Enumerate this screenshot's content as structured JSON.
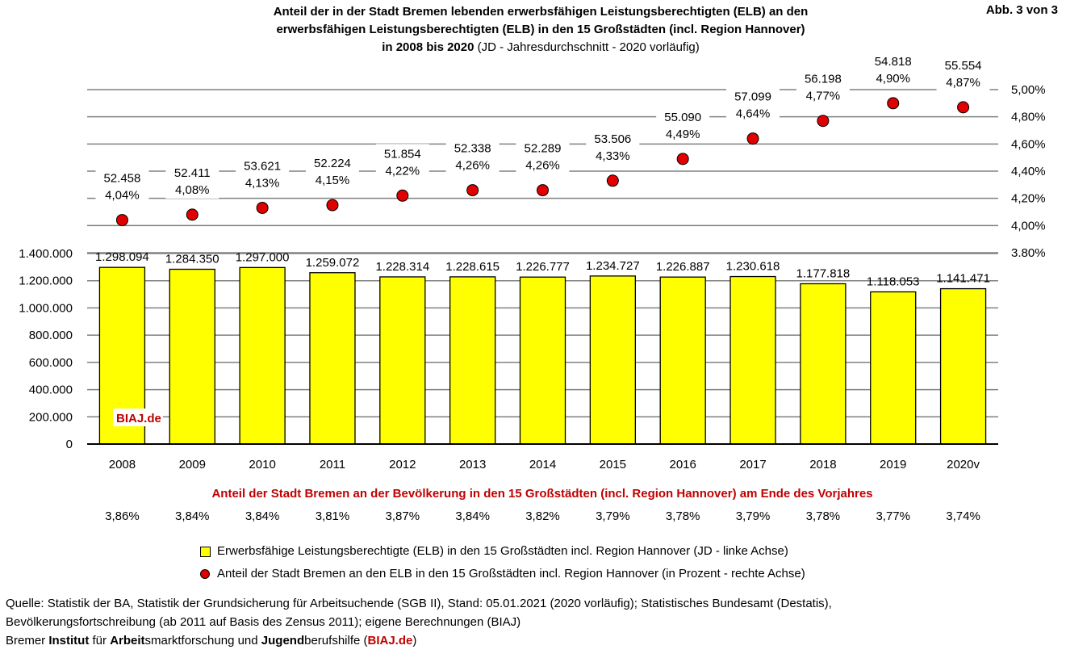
{
  "header": {
    "title_line1": "Anteil der in der Stadt Bremen lebenden erwerbsfähigen Leistungsberechtigten (ELB) an den",
    "title_line2": "erwerbsfähigen Leistungsberechtigten (ELB) in den 15 Großstädten (incl. Region Hannover)",
    "title_line3_bold": "in 2008 bis 2020",
    "title_line3_normal": "(JD - Jahresdurchschnitt - 2020 vorläufig)",
    "figure_label": "Abb. 3 von 3"
  },
  "chart_data": {
    "type": "bar+scatter",
    "categories": [
      "2008",
      "2009",
      "2010",
      "2011",
      "2012",
      "2013",
      "2014",
      "2015",
      "2016",
      "2017",
      "2018",
      "2019",
      "2020v"
    ],
    "bars": {
      "name": "Erwerbsfähige Leistungsberechtigte (ELB) in den 15 Großstädten incl. Region Hannover (JD - linke Achse)",
      "values": [
        1298094,
        1284350,
        1297000,
        1259072,
        1228314,
        1228615,
        1226777,
        1234727,
        1226887,
        1230618,
        1177818,
        1118053,
        1141471
      ],
      "labels": [
        "1.298.094",
        "1.284.350",
        "1.297.000",
        "1.259.072",
        "1.228.314",
        "1.228.615",
        "1.226.777",
        "1.234.727",
        "1.226.887",
        "1.230.618",
        "1.177.818",
        "1.118.053",
        "1.141.471"
      ],
      "ylim": [
        0,
        1400000
      ],
      "ticks": [
        "0",
        "200.000",
        "400.000",
        "600.000",
        "800.000",
        "1.000.000",
        "1.200.000",
        "1.400.000"
      ],
      "color": "#ffff00"
    },
    "points": {
      "name": "Anteil der Stadt Bremen an den ELB in den 15 Großstädten incl. Region Hannover (in Prozent - rechte Achse)",
      "values": [
        4.04,
        4.08,
        4.13,
        4.15,
        4.22,
        4.26,
        4.26,
        4.33,
        4.49,
        4.64,
        4.77,
        4.9,
        4.87
      ],
      "pct_labels": [
        "4,04%",
        "4,08%",
        "4,13%",
        "4,15%",
        "4,22%",
        "4,26%",
        "4,26%",
        "4,33%",
        "4,49%",
        "4,64%",
        "4,77%",
        "4,90%",
        "4,87%"
      ],
      "count_labels": [
        "52.458",
        "52.411",
        "53.621",
        "52.224",
        "51.854",
        "52.338",
        "52.289",
        "53.506",
        "55.090",
        "57.099",
        "56.198",
        "54.818",
        "55.554"
      ],
      "ylim": [
        3.8,
        5.0
      ],
      "ticks": [
        "3,80%",
        "4,00%",
        "4,20%",
        "4,40%",
        "4,60%",
        "4,80%",
        "5,00%"
      ],
      "color": "#e00000"
    },
    "population_share": {
      "title": "Anteil der Stadt Bremen an der Bevölkerung in den 15 Großstädten (incl. Region Hannover) am Ende des Vorjahres",
      "values": [
        "3,86%",
        "3,84%",
        "3,84%",
        "3,81%",
        "3,87%",
        "3,84%",
        "3,82%",
        "3,79%",
        "3,78%",
        "3,79%",
        "3,78%",
        "3,77%",
        "3,74%"
      ]
    },
    "watermark": "BIAJ.de"
  },
  "legend": {
    "bars_label": "Erwerbsfähige Leistungsberechtigte (ELB) in den 15 Großstädten incl. Region Hannover (JD - linke Achse)",
    "points_label": "Anteil der Stadt Bremen an den ELB in den 15 Großstädten incl. Region Hannover (in Prozent - rechte Achse)"
  },
  "footer": {
    "line1": "Quelle: Statistik der BA, Statistik der Grundsicherung für Arbeitsuchende (SGB II), Stand: 05.01.2021 (2020 vorläufig); Statistisches Bundesamt (Destatis),",
    "line2": "Bevölkerungsfortschreibung (ab 2011 auf Basis des Zensus 2011); eigene Berechnungen (BIAJ)",
    "l3_a": "Bremer ",
    "l3_b": "Institut",
    "l3_c": " für ",
    "l3_d": "Arbeit",
    "l3_e": "smarktforschung und ",
    "l3_f": "Jugend",
    "l3_g": "berufshilfe (",
    "l3_h": "BIAJ.de",
    "l3_i": ")"
  },
  "colors": {
    "accent_red": "#c00000",
    "bar_yellow": "#ffff00",
    "dot_red": "#e00000"
  }
}
